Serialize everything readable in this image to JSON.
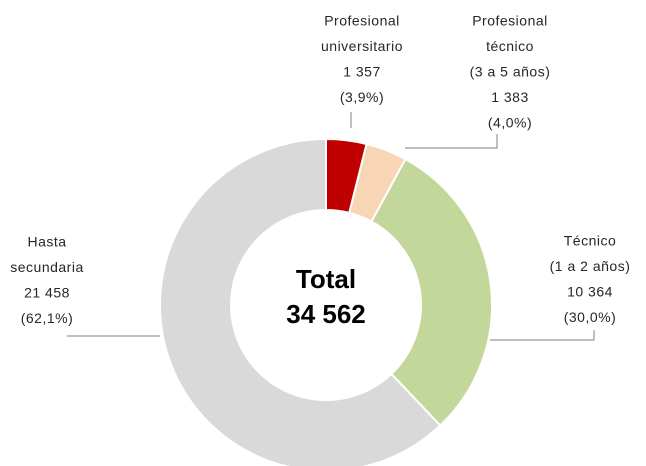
{
  "chart_data": {
    "type": "donut",
    "categories": [
      [
        "Profesional",
        "universitario"
      ],
      [
        "Profesional",
        "técnico",
        "(3 a 5 años)"
      ],
      [
        "Técnico",
        "(1 a 2 años)"
      ],
      [
        "Hasta",
        "secundaria"
      ]
    ],
    "values": [
      1357,
      1383,
      10364,
      21458
    ],
    "value_labels": [
      "1 357",
      "1 383",
      "10 364",
      "21 458"
    ],
    "percents": [
      3.9,
      4.0,
      30.0,
      62.1
    ],
    "percent_labels": [
      "(3,9%)",
      "(4,0%)",
      "(30,0%)",
      "(62,1%)"
    ],
    "colors": [
      "#c00000",
      "#f8d5b5",
      "#c4d79b",
      "#d9d9d9"
    ],
    "center_text": [
      "Total",
      "34 562"
    ]
  }
}
